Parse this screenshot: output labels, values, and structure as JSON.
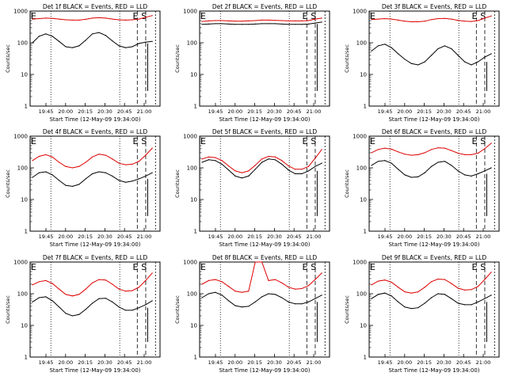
{
  "chart_data": [
    {
      "type": "line",
      "title": "Det 1f BLACK = Events, RED = LLD",
      "xlabel": "Start Time (12-May-09 19:34:00)",
      "ylabel": "Counts/sec",
      "yscale": "log",
      "ylim": [
        1,
        1000
      ],
      "ytick_labels": [
        "1",
        "10",
        "100",
        "1000"
      ],
      "xtick_labels": [
        "19:45",
        "20:00",
        "20:15",
        "20:30",
        "20:45",
        "21:00"
      ],
      "markers": [
        "E",
        "S"
      ],
      "series": [
        {
          "name": "Events",
          "color": "#000000",
          "values": [
            100,
            160,
            190,
            160,
            110,
            75,
            70,
            80,
            120,
            190,
            210,
            170,
            115,
            80,
            70,
            75,
            95,
            105,
            110
          ]
        },
        {
          "name": "LLD",
          "color": "#dd0000",
          "values": [
            560,
            580,
            600,
            590,
            560,
            530,
            520,
            520,
            550,
            600,
            620,
            600,
            560,
            530,
            520,
            530,
            560,
            640,
            720
          ]
        }
      ]
    },
    {
      "type": "line",
      "title": "Det 2f BLACK = Events, RED = LLD",
      "xlabel": "Start Time (12-May-09 19:34:00)",
      "ylabel": "Counts/sec",
      "yscale": "log",
      "ylim": [
        1,
        1000
      ],
      "ytick_labels": [
        "1",
        "10",
        "100",
        "1000"
      ],
      "xtick_labels": [
        "19:45",
        "20:00",
        "20:15",
        "20:30",
        "20:45",
        "21:00"
      ],
      "markers": [
        "E",
        "S"
      ],
      "series": [
        {
          "name": "Events",
          "color": "#000000",
          "values": [
            380,
            390,
            400,
            400,
            390,
            380,
            380,
            380,
            390,
            400,
            400,
            400,
            390,
            380,
            380,
            380,
            390,
            420,
            450
          ]
        },
        {
          "name": "LLD",
          "color": "#dd0000",
          "values": [
            470,
            490,
            500,
            500,
            490,
            480,
            480,
            490,
            500,
            520,
            520,
            510,
            500,
            490,
            490,
            490,
            500,
            560,
            600
          ]
        }
      ]
    },
    {
      "type": "line",
      "title": "Det 3f BLACK = Events, RED = LLD",
      "xlabel": "Start Time (12-May-09 19:34:00)",
      "ylabel": "Counts/sec",
      "yscale": "log",
      "ylim": [
        1,
        1000
      ],
      "ytick_labels": [
        "1",
        "10",
        "100",
        "1000"
      ],
      "xtick_labels": [
        "19:45",
        "20:00",
        "20:15",
        "20:30",
        "20:45",
        "21:00"
      ],
      "markers": [
        "E",
        "S"
      ],
      "series": [
        {
          "name": "Events",
          "color": "#000000",
          "values": [
            55,
            80,
            90,
            70,
            45,
            30,
            22,
            20,
            25,
            40,
            65,
            80,
            65,
            40,
            25,
            20,
            25,
            35,
            45
          ]
        },
        {
          "name": "LLD",
          "color": "#dd0000",
          "values": [
            540,
            560,
            580,
            560,
            520,
            480,
            460,
            460,
            480,
            540,
            580,
            590,
            560,
            510,
            480,
            470,
            500,
            600,
            700
          ]
        }
      ]
    },
    {
      "type": "line",
      "title": "Det 4f BLACK = Events, RED = LLD",
      "xlabel": "Start Time (12-May-09 19:34:00)",
      "ylabel": "Counts/sec",
      "yscale": "log",
      "ylim": [
        1,
        1000
      ],
      "ytick_labels": [
        "1",
        "10",
        "100",
        "1000"
      ],
      "xtick_labels": [
        "19:45",
        "20:00",
        "20:15",
        "20:30",
        "20:45",
        "21:00"
      ],
      "markers": [
        "E",
        "S"
      ],
      "series": [
        {
          "name": "Events",
          "color": "#000000",
          "values": [
            50,
            70,
            75,
            60,
            40,
            28,
            26,
            30,
            45,
            65,
            75,
            70,
            55,
            40,
            35,
            38,
            45,
            55,
            70
          ]
        },
        {
          "name": "LLD",
          "color": "#dd0000",
          "values": [
            170,
            230,
            260,
            220,
            150,
            110,
            100,
            110,
            150,
            220,
            270,
            250,
            190,
            140,
            125,
            130,
            160,
            250,
            420
          ]
        }
      ]
    },
    {
      "type": "line",
      "title": "Det 5f BLACK = Events, RED = LLD",
      "xlabel": "Start Time (12-May-09 19:34:00)",
      "ylabel": "Counts/sec",
      "yscale": "log",
      "ylim": [
        1,
        1000
      ],
      "ytick_labels": [
        "1",
        "10",
        "100",
        "1000"
      ],
      "xtick_labels": [
        "19:45",
        "20:00",
        "20:15",
        "20:30",
        "20:45",
        "21:00"
      ],
      "markers": [
        "E",
        "S"
      ],
      "series": [
        {
          "name": "Events",
          "color": "#000000",
          "values": [
            150,
            180,
            170,
            130,
            85,
            55,
            48,
            55,
            90,
            150,
            190,
            180,
            130,
            85,
            65,
            65,
            80,
            110,
            140
          ]
        },
        {
          "name": "LLD",
          "color": "#dd0000",
          "values": [
            190,
            220,
            210,
            170,
            115,
            80,
            70,
            80,
            120,
            190,
            230,
            220,
            170,
            115,
            90,
            90,
            110,
            200,
            380
          ]
        }
      ]
    },
    {
      "type": "line",
      "title": "Det 6f BLACK = Events, RED = LLD",
      "xlabel": "Start Time (12-May-09 19:34:00)",
      "ylabel": "Counts/sec",
      "yscale": "log",
      "ylim": [
        1,
        1000
      ],
      "ytick_labels": [
        "1",
        "10",
        "100",
        "1000"
      ],
      "xtick_labels": [
        "19:45",
        "20:00",
        "20:15",
        "20:30",
        "20:45",
        "21:00"
      ],
      "markers": [
        "E",
        "S"
      ],
      "series": [
        {
          "name": "Events",
          "color": "#000000",
          "values": [
            120,
            160,
            170,
            140,
            90,
            60,
            50,
            52,
            70,
            110,
            150,
            160,
            120,
            80,
            60,
            55,
            65,
            80,
            100
          ]
        },
        {
          "name": "LLD",
          "color": "#dd0000",
          "values": [
            300,
            380,
            420,
            390,
            320,
            270,
            250,
            260,
            300,
            380,
            430,
            420,
            350,
            290,
            260,
            260,
            290,
            400,
            600
          ]
        }
      ]
    },
    {
      "type": "line",
      "title": "Det 7f BLACK = Events, RED = LLD",
      "xlabel": "Start Time (12-May-09 19:34:00)",
      "ylabel": "Counts/sec",
      "yscale": "log",
      "ylim": [
        1,
        1000
      ],
      "ytick_labels": [
        "1",
        "10",
        "100",
        "1000"
      ],
      "xtick_labels": [
        "19:45",
        "20:00",
        "20:15",
        "20:30",
        "20:45",
        "21:00"
      ],
      "markers": [
        "E",
        "S"
      ],
      "series": [
        {
          "name": "Events",
          "color": "#000000",
          "values": [
            55,
            75,
            80,
            60,
            38,
            24,
            20,
            22,
            32,
            50,
            70,
            72,
            55,
            38,
            30,
            30,
            36,
            45,
            60
          ]
        },
        {
          "name": "LLD",
          "color": "#dd0000",
          "values": [
            190,
            240,
            260,
            210,
            140,
            95,
            85,
            95,
            140,
            220,
            280,
            270,
            200,
            140,
            120,
            125,
            160,
            260,
            450
          ]
        }
      ]
    },
    {
      "type": "line",
      "title": "Det 8f BLACK = Events, RED = LLD",
      "xlabel": "Start Time (12-May-09 19:34:00)",
      "ylabel": "Counts/sec",
      "yscale": "log",
      "ylim": [
        1,
        1000
      ],
      "ytick_labels": [
        "1",
        "10",
        "100",
        "1000"
      ],
      "xtick_labels": [
        "19:45",
        "20:00",
        "20:15",
        "20:30",
        "20:45",
        "21:00"
      ],
      "markers": [
        "E",
        "S"
      ],
      "series": [
        {
          "name": "Events",
          "color": "#000000",
          "values": [
            75,
            100,
            110,
            90,
            60,
            42,
            38,
            40,
            55,
            80,
            100,
            95,
            75,
            55,
            48,
            48,
            55,
            70,
            90
          ]
        },
        {
          "name": "LLD",
          "color": "#dd0000",
          "values": [
            200,
            260,
            280,
            240,
            170,
            120,
            110,
            120,
            1000,
            1000,
            260,
            280,
            220,
            160,
            140,
            145,
            180,
            280,
            450
          ]
        }
      ]
    },
    {
      "type": "line",
      "title": "Det 9f BLACK = Events, RED = LLD",
      "xlabel": "Start Time (12-May-09 19:34:00)",
      "ylabel": "Counts/sec",
      "yscale": "log",
      "ylim": [
        1,
        1000
      ],
      "ytick_labels": [
        "1",
        "10",
        "100",
        "1000"
      ],
      "xtick_labels": [
        "19:45",
        "20:00",
        "20:15",
        "20:30",
        "20:45",
        "21:00"
      ],
      "markers": [
        "E",
        "S"
      ],
      "series": [
        {
          "name": "Events",
          "color": "#000000",
          "values": [
            70,
            95,
            105,
            85,
            55,
            38,
            34,
            36,
            50,
            75,
            100,
            95,
            70,
            50,
            45,
            45,
            55,
            70,
            90
          ]
        },
        {
          "name": "LLD",
          "color": "#dd0000",
          "values": [
            190,
            250,
            270,
            230,
            160,
            115,
            105,
            115,
            160,
            240,
            290,
            280,
            210,
            150,
            130,
            135,
            170,
            280,
            480
          ]
        }
      ]
    }
  ]
}
